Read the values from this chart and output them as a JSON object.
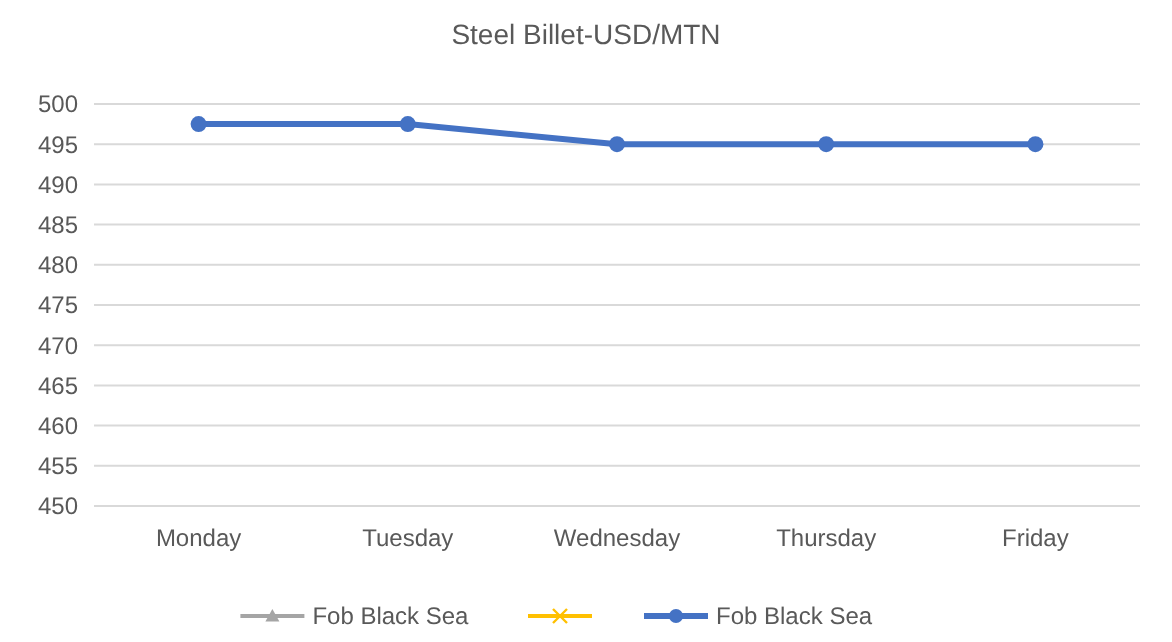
{
  "chart_data": {
    "type": "line",
    "title": "Steel Billet-USD/MTN",
    "categories": [
      "Monday",
      "Tuesday",
      "Wednesday",
      "Thursday",
      "Friday"
    ],
    "series": [
      {
        "name": "Fob Black Sea",
        "color": "#a5a5a5",
        "marker": "triangle",
        "values": [
          null,
          null,
          null,
          null,
          null
        ]
      },
      {
        "color": "#ffc000",
        "marker": "cross",
        "values": [
          null,
          null,
          null,
          null,
          null
        ]
      },
      {
        "name": "Fob Black Sea",
        "color": "#4472c4",
        "marker": "circle",
        "values": [
          497.5,
          497.5,
          495,
          495,
          495
        ]
      }
    ],
    "ylim": [
      450,
      500
    ],
    "yticks": [
      450,
      455,
      460,
      465,
      470,
      475,
      480,
      485,
      490,
      495,
      500
    ],
    "grid": "y",
    "legend": "bottom"
  }
}
